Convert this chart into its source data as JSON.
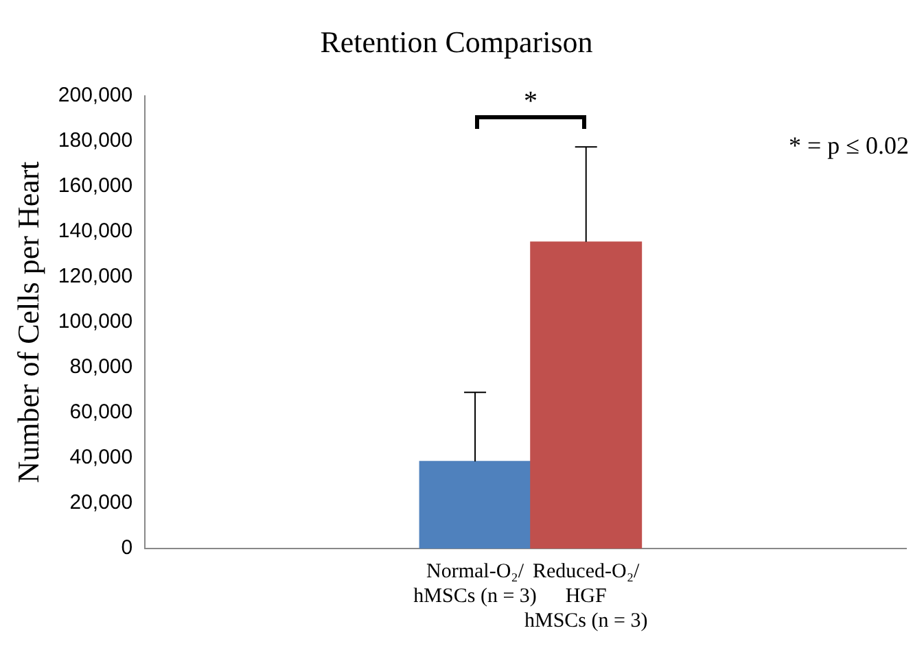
{
  "chart_data": {
    "type": "bar",
    "title": "Retention Comparison",
    "ylabel": "Number of Cells per Heart",
    "categories": [
      "Normal-O₂/\nhMSCs (n = 3)",
      "Reduced-O₂/\nHGF\nhMSCs (n = 3)"
    ],
    "values": [
      38500,
      135500
    ],
    "colors": [
      "#4f81bd",
      "#c0504d"
    ],
    "errors": [
      [
        38500,
        69000
      ],
      [
        135500,
        177500
      ]
    ],
    "ylim": [
      0,
      200000
    ],
    "yticks": [
      0,
      {
        "value": 20000,
        "label": "20,000"
      },
      {
        "value": 40000,
        "label": "40,000"
      },
      {
        "value": 60000,
        "label": "60,000"
      },
      {
        "value": 80000,
        "label": "80,000"
      },
      {
        "value": 100000,
        "label": "100,000"
      },
      {
        "value": 120000,
        "label": "120,000"
      },
      {
        "value": 140000,
        "label": "140,000"
      },
      {
        "value": 160000,
        "label": "160,000"
      },
      {
        "value": 180000,
        "label": "180,000"
      },
      {
        "value": 200000,
        "label": "200,000"
      }
    ],
    "grid": false,
    "legend": false,
    "annotations": [
      "*",
      "* = p ≤ 0.02"
    ]
  }
}
